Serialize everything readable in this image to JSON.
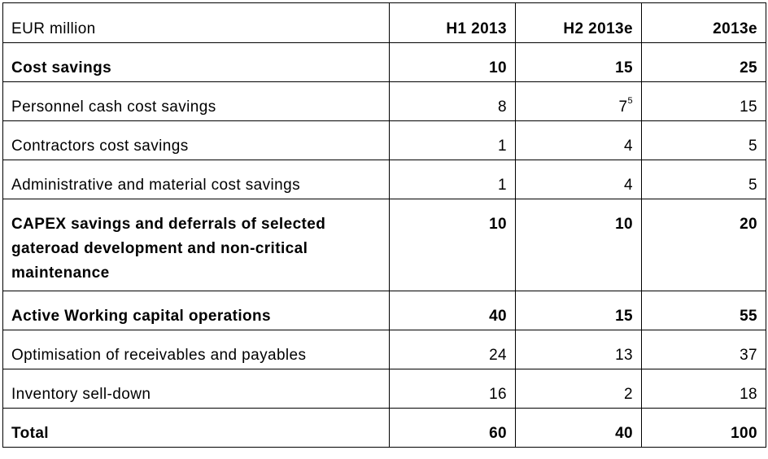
{
  "table": {
    "headers": [
      "EUR million",
      "H1 2013",
      "H2 2013e",
      "2013e"
    ],
    "rows": [
      {
        "label": "Cost savings",
        "bold": true,
        "h1": "10",
        "h2": "15",
        "h2_sup": "",
        "fy": "25"
      },
      {
        "label": "Personnel cash cost savings",
        "bold": false,
        "h1": "8",
        "h2": "7",
        "h2_sup": "5",
        "fy": "15"
      },
      {
        "label": "Contractors cost savings",
        "bold": false,
        "h1": "1",
        "h2": "4",
        "h2_sup": "",
        "fy": "5"
      },
      {
        "label": "Administrative and material cost savings",
        "bold": false,
        "h1": "1",
        "h2": "4",
        "h2_sup": "",
        "fy": "5"
      },
      {
        "label": "CAPEX savings and deferrals of selected gateroad development and non-critical maintenance",
        "bold": true,
        "h1": "10",
        "h2": "10",
        "h2_sup": "",
        "fy": "20"
      },
      {
        "label": "Active Working capital operations",
        "bold": true,
        "h1": "40",
        "h2": "15",
        "h2_sup": "",
        "fy": "55"
      },
      {
        "label": "Optimisation of receivables and payables",
        "bold": false,
        "h1": "24",
        "h2": "13",
        "h2_sup": "",
        "fy": "37"
      },
      {
        "label": "Inventory sell-down",
        "bold": false,
        "h1": "16",
        "h2": "2",
        "h2_sup": "",
        "fy": "18"
      },
      {
        "label": "Total",
        "bold": true,
        "h1": "60",
        "h2": "40",
        "h2_sup": "",
        "fy": "100"
      }
    ]
  }
}
